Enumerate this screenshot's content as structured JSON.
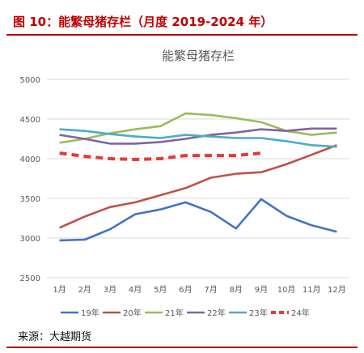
{
  "figure": {
    "title": "图 10：能繁母猪存栏（月度 2019-2024 年）",
    "source": "来源：大越期货"
  },
  "chart_data": {
    "type": "line",
    "title": "能繁母猪存栏",
    "xlabel": "",
    "ylabel": "",
    "categories": [
      "1月",
      "2月",
      "3月",
      "4月",
      "5月",
      "6月",
      "7月",
      "8月",
      "9月",
      "10月",
      "11月",
      "12月"
    ],
    "ylim": [
      2500,
      5000
    ],
    "yticks": [
      2500,
      3000,
      3500,
      4000,
      4500,
      5000
    ],
    "grid": "horizontal",
    "legend_position": "bottom",
    "series": [
      {
        "name": "19年",
        "color": "#4472c4",
        "dashed": false,
        "values": [
          2970,
          2980,
          3110,
          3300,
          3360,
          3450,
          3330,
          3120,
          3490,
          3280,
          3160,
          3080
        ]
      },
      {
        "name": "20年",
        "color": "#c0504d",
        "dashed": false,
        "values": [
          3130,
          3270,
          3390,
          3450,
          3540,
          3630,
          3760,
          3810,
          3830,
          3930,
          4050,
          4170
        ]
      },
      {
        "name": "21年",
        "color": "#9bbb59",
        "dashed": false,
        "values": [
          4200,
          4250,
          4320,
          4370,
          4410,
          4570,
          4550,
          4510,
          4460,
          4350,
          4300,
          4330
        ]
      },
      {
        "name": "22年",
        "color": "#8064a2",
        "dashed": false,
        "values": [
          4300,
          4250,
          4190,
          4190,
          4210,
          4250,
          4300,
          4330,
          4370,
          4350,
          4380,
          4380
        ]
      },
      {
        "name": "23年",
        "color": "#4bacc6",
        "dashed": false,
        "values": [
          4370,
          4350,
          4310,
          4280,
          4260,
          4300,
          4280,
          4260,
          4260,
          4220,
          4170,
          4150
        ]
      },
      {
        "name": "24年",
        "color": "#e53935",
        "dashed": true,
        "values": [
          4070,
          4030,
          4000,
          3990,
          4000,
          4040,
          4040,
          4040,
          4070,
          null,
          null,
          null
        ]
      }
    ]
  }
}
